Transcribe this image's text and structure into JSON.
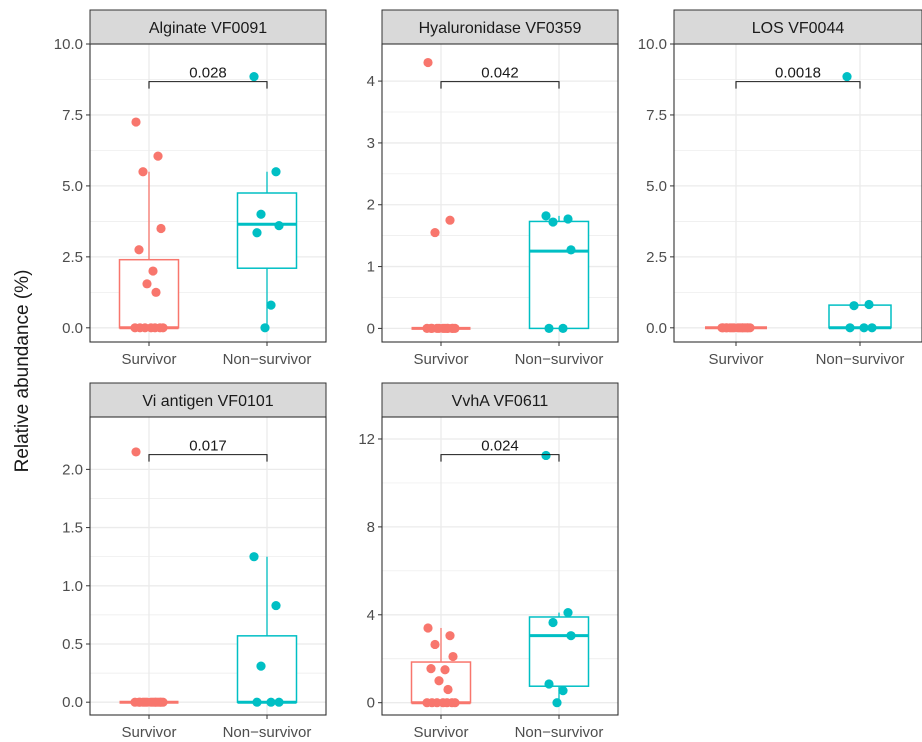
{
  "figure": {
    "ylabel": "Relative abundance (%)"
  },
  "colors": {
    "survivor": "#F8766D",
    "nonsurvivor": "#00BFC4",
    "strip_fill": "#D9D9D9",
    "strip_border": "#333333",
    "grid": "#EBEBEB"
  },
  "chart_data": [
    {
      "type": "box",
      "title": "Alginate VF0091",
      "categories": [
        "Survivor",
        "Non−survivor"
      ],
      "ylim": [
        -0.5,
        10
      ],
      "y_ticks": [
        0,
        2.5,
        5,
        7.5,
        10
      ],
      "y_tick_labels": [
        "0.0",
        "2.5",
        "5.0",
        "7.5",
        "10.0"
      ],
      "p_value": "0.028",
      "boxes": [
        {
          "name": "Survivor",
          "q1": 0,
          "median": 0,
          "q3": 2.4,
          "whisker_low": 0,
          "whisker_high": 5.5
        },
        {
          "name": "Non−survivor",
          "q1": 2.1,
          "median": 3.65,
          "q3": 4.75,
          "whisker_low": 0,
          "whisker_high": 5.5
        }
      ],
      "points": [
        {
          "group": "Survivor",
          "values": [
            7.25,
            6.05,
            5.5,
            3.5,
            2.75,
            2.0,
            1.55,
            1.25,
            0,
            0,
            0,
            0,
            0,
            0,
            0
          ]
        },
        {
          "group": "Non−survivor",
          "values": [
            8.85,
            5.5,
            4.0,
            3.6,
            3.35,
            0.8,
            0
          ]
        }
      ]
    },
    {
      "type": "box",
      "title": "Hyaluronidase VF0359",
      "categories": [
        "Survivor",
        "Non−survivor"
      ],
      "ylim": [
        -0.22,
        4.6
      ],
      "y_ticks": [
        0,
        1,
        2,
        3,
        4
      ],
      "y_tick_labels": [
        "0",
        "1",
        "2",
        "3",
        "4"
      ],
      "p_value": "0.042",
      "boxes": [
        {
          "name": "Survivor",
          "q1": 0,
          "median": 0,
          "q3": 0,
          "whisker_low": 0,
          "whisker_high": 0
        },
        {
          "name": "Non−survivor",
          "q1": 0,
          "median": 1.25,
          "q3": 1.73,
          "whisker_low": 0,
          "whisker_high": 1.82
        }
      ],
      "points": [
        {
          "group": "Survivor",
          "values": [
            4.3,
            1.75,
            1.55,
            0,
            0,
            0,
            0,
            0,
            0,
            0,
            0,
            0,
            0,
            0,
            0
          ]
        },
        {
          "group": "Non−survivor",
          "values": [
            1.82,
            1.77,
            1.72,
            1.27,
            0,
            0
          ]
        }
      ]
    },
    {
      "type": "box",
      "title": "LOS VF0044",
      "categories": [
        "Survivor",
        "Non−survivor"
      ],
      "ylim": [
        -0.5,
        10
      ],
      "y_ticks": [
        0,
        2.5,
        5,
        7.5,
        10
      ],
      "y_tick_labels": [
        "0.0",
        "2.5",
        "5.0",
        "7.5",
        "10.0"
      ],
      "p_value": "0.0018",
      "boxes": [
        {
          "name": "Survivor",
          "q1": 0,
          "median": 0,
          "q3": 0,
          "whisker_low": 0,
          "whisker_high": 0
        },
        {
          "name": "Non−survivor",
          "q1": 0,
          "median": 0,
          "q3": 0.8,
          "whisker_low": 0,
          "whisker_high": 0.8
        }
      ],
      "points": [
        {
          "group": "Survivor",
          "values": [
            0,
            0,
            0,
            0,
            0,
            0,
            0,
            0,
            0,
            0,
            0,
            0,
            0,
            0,
            0
          ]
        },
        {
          "group": "Non−survivor",
          "values": [
            8.85,
            0.82,
            0.78,
            0,
            0,
            0
          ]
        }
      ]
    },
    {
      "type": "box",
      "title": "Vi antigen VF0101",
      "categories": [
        "Survivor",
        "Non−survivor"
      ],
      "ylim": [
        -0.11,
        2.45
      ],
      "y_ticks": [
        0,
        0.5,
        1,
        1.5,
        2
      ],
      "y_tick_labels": [
        "0.0",
        "0.5",
        "1.0",
        "1.5",
        "2.0"
      ],
      "p_value": "0.017",
      "boxes": [
        {
          "name": "Survivor",
          "q1": 0,
          "median": 0,
          "q3": 0,
          "whisker_low": 0,
          "whisker_high": 0
        },
        {
          "name": "Non−survivor",
          "q1": 0,
          "median": 0,
          "q3": 0.57,
          "whisker_low": 0,
          "whisker_high": 1.25
        }
      ],
      "points": [
        {
          "group": "Survivor",
          "values": [
            2.15,
            0,
            0,
            0,
            0,
            0,
            0,
            0,
            0,
            0,
            0,
            0,
            0,
            0,
            0
          ]
        },
        {
          "group": "Non−survivor",
          "values": [
            1.25,
            0.83,
            0.31,
            0,
            0,
            0
          ]
        }
      ]
    },
    {
      "type": "box",
      "title": "VvhA VF0611",
      "categories": [
        "Survivor",
        "Non−survivor"
      ],
      "ylim": [
        -0.56,
        13.0
      ],
      "y_ticks": [
        0,
        4,
        8,
        12
      ],
      "y_tick_labels": [
        "0",
        "4",
        "8",
        "12"
      ],
      "p_value": "0.024",
      "boxes": [
        {
          "name": "Survivor",
          "q1": 0,
          "median": 0,
          "q3": 1.85,
          "whisker_low": 0,
          "whisker_high": 3.4
        },
        {
          "name": "Non−survivor",
          "q1": 0.75,
          "median": 3.05,
          "q3": 3.9,
          "whisker_low": 0,
          "whisker_high": 4.1
        }
      ],
      "points": [
        {
          "group": "Survivor",
          "values": [
            3.4,
            3.05,
            2.65,
            2.1,
            1.55,
            1.5,
            1.0,
            0.6,
            0,
            0,
            0,
            0,
            0,
            0,
            0
          ]
        },
        {
          "group": "Non−survivor",
          "values": [
            11.25,
            4.1,
            3.65,
            3.05,
            0.85,
            0.55,
            0
          ]
        }
      ]
    }
  ]
}
